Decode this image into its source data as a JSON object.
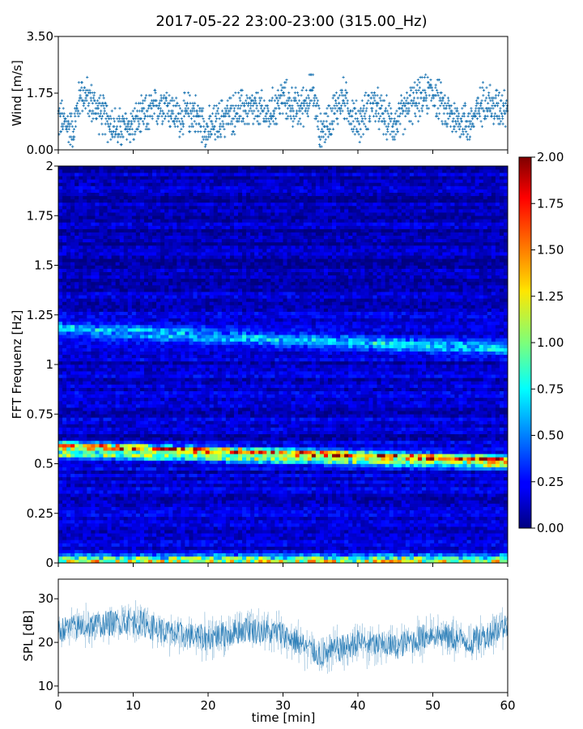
{
  "title": "2017-05-22 23:00-23:00 (315.00_Hz)",
  "chart_data": [
    {
      "type": "scatter",
      "panel": "wind",
      "ylabel": "Wind [m/s]",
      "xlim": [
        0,
        60
      ],
      "ylim": [
        0,
        3.5
      ],
      "yticks": [
        {
          "v": 0,
          "label": "0.00"
        },
        {
          "v": 1.75,
          "label": "1.75"
        },
        {
          "v": 3.5,
          "label": "3.50"
        }
      ],
      "marker_color": "#1f77b4",
      "wind_envelope": {
        "minutes": [
          0,
          2,
          3,
          5,
          8,
          10,
          12,
          14,
          16,
          18,
          20,
          22,
          25,
          28,
          30,
          32,
          34,
          35,
          36,
          38,
          40,
          42,
          43,
          45,
          47,
          50,
          52,
          55,
          57,
          58,
          60
        ],
        "mean": [
          1.0,
          0.6,
          1.8,
          1.3,
          0.6,
          0.8,
          1.1,
          1.5,
          1.0,
          1.2,
          0.6,
          1.0,
          1.3,
          1.1,
          1.6,
          1.2,
          1.8,
          0.5,
          0.9,
          1.6,
          0.8,
          1.5,
          1.1,
          0.8,
          1.4,
          1.8,
          1.1,
          0.8,
          1.6,
          1.3,
          1.4
        ],
        "spread": 0.55,
        "resolution": 0.08
      }
    },
    {
      "type": "heatmap",
      "panel": "spectrogram",
      "ylabel": "FFT Frequenz [Hz]",
      "xlim": [
        0,
        60
      ],
      "ylim": [
        0,
        2
      ],
      "yticks": [
        {
          "v": 0,
          "label": "0"
        },
        {
          "v": 0.25,
          "label": "0.25"
        },
        {
          "v": 0.5,
          "label": "0.5"
        },
        {
          "v": 0.75,
          "label": "0.75"
        },
        {
          "v": 1,
          "label": "1"
        },
        {
          "v": 1.25,
          "label": "1.25"
        },
        {
          "v": 1.5,
          "label": "1.5"
        },
        {
          "v": 1.75,
          "label": "1.75"
        },
        {
          "v": 2,
          "label": "2"
        }
      ],
      "colormap": "jet",
      "colorbar": {
        "min": 0,
        "max": 2,
        "ticks": [
          "0.00",
          "0.25",
          "0.50",
          "0.75",
          "1.00",
          "1.25",
          "1.50",
          "1.75",
          "2.00"
        ]
      },
      "bands": [
        {
          "name": "ridge",
          "freq_start": 0.59,
          "freq_end": 0.52,
          "intensity": 1.7
        },
        {
          "name": "ridge-lower",
          "freq_start": 0.55,
          "freq_end": 0.49,
          "intensity": 0.9
        },
        {
          "name": "upper",
          "freq_start": 1.18,
          "freq_end": 1.08,
          "intensity": 0.55
        },
        {
          "name": "floor",
          "freq_start": 0.01,
          "freq_end": 0.01,
          "intensity": 1.2
        }
      ],
      "background_level": 0.15
    },
    {
      "type": "line",
      "panel": "spl",
      "ylabel": "SPL [dB]",
      "xlabel": "time [min]",
      "xlim": [
        0,
        60
      ],
      "ylim": [
        8.5,
        34.5
      ],
      "yticks": [
        {
          "v": 10,
          "label": "10"
        },
        {
          "v": 20,
          "label": "20"
        },
        {
          "v": 30,
          "label": "30"
        }
      ],
      "xticks": [
        {
          "v": 0,
          "label": "0"
        },
        {
          "v": 10,
          "label": "10"
        },
        {
          "v": 20,
          "label": "20"
        },
        {
          "v": 30,
          "label": "30"
        },
        {
          "v": 40,
          "label": "40"
        },
        {
          "v": 50,
          "label": "50"
        },
        {
          "v": 60,
          "label": "60"
        }
      ],
      "line_color": "#1f77b4",
      "spl_envelope": {
        "minutes": [
          0,
          5,
          10,
          15,
          20,
          25,
          30,
          35,
          40,
          45,
          50,
          55,
          60
        ],
        "mean": [
          23,
          24,
          25,
          22,
          21,
          23,
          22,
          17,
          20,
          19,
          22,
          20,
          24
        ],
        "spread": 5
      }
    }
  ]
}
